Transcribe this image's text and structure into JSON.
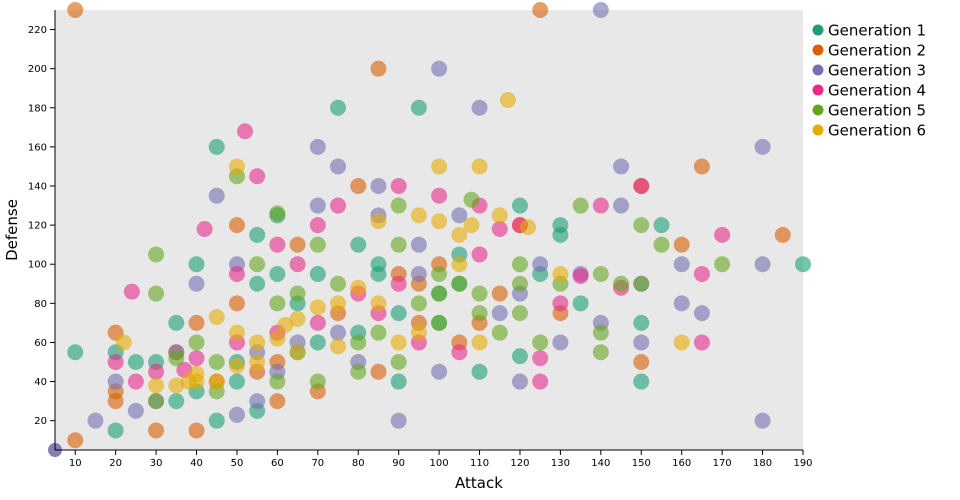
{
  "chart_data": {
    "type": "scatter",
    "xlabel": "Attack",
    "ylabel": "Defense",
    "xlim": [
      5,
      190
    ],
    "ylim": [
      5,
      230
    ],
    "grid": false,
    "legend_position": "right",
    "background": "#e8e8e8",
    "x_ticks": [
      "10",
      "20",
      "30",
      "40",
      "50",
      "60",
      "70",
      "80",
      "90",
      "100",
      "110",
      "120",
      "130",
      "140",
      "150",
      "160",
      "170",
      "180",
      "190"
    ],
    "y_ticks": [
      "20",
      "40",
      "60",
      "80",
      "100",
      "120",
      "140",
      "160",
      "180",
      "200",
      "220"
    ],
    "series": [
      {
        "name": "Generation 1",
        "color": "#1b9e77",
        "points": [
          [
            10,
            55
          ],
          [
            20,
            15
          ],
          [
            20,
            55
          ],
          [
            25,
            50
          ],
          [
            35,
            30
          ],
          [
            35,
            70
          ],
          [
            40,
            100
          ],
          [
            45,
            20
          ],
          [
            45,
            160
          ],
          [
            50,
            40
          ],
          [
            55,
            25
          ],
          [
            55,
            115
          ],
          [
            55,
            90
          ],
          [
            60,
            95
          ],
          [
            60,
            125
          ],
          [
            65,
            55
          ],
          [
            70,
            95
          ],
          [
            75,
            180
          ],
          [
            80,
            110
          ],
          [
            80,
            65
          ],
          [
            85,
            100
          ],
          [
            90,
            40
          ],
          [
            95,
            180
          ],
          [
            100,
            70
          ],
          [
            105,
            105
          ],
          [
            110,
            45
          ],
          [
            120,
            130
          ],
          [
            120,
            53
          ],
          [
            130,
            115
          ],
          [
            130,
            120
          ],
          [
            135,
            80
          ],
          [
            150,
            40
          ],
          [
            150,
            70
          ],
          [
            155,
            120
          ],
          [
            190,
            100
          ],
          [
            65,
            80
          ],
          [
            85,
            95
          ],
          [
            105,
            90
          ],
          [
            50,
            50
          ],
          [
            40,
            35
          ],
          [
            30,
            50
          ],
          [
            70,
            60
          ],
          [
            90,
            75
          ],
          [
            100,
            85
          ],
          [
            125,
            95
          ]
        ]
      },
      {
        "name": "Generation 2",
        "color": "#d95f02",
        "points": [
          [
            10,
            230
          ],
          [
            10,
            10
          ],
          [
            20,
            65
          ],
          [
            20,
            35
          ],
          [
            20,
            30
          ],
          [
            30,
            15
          ],
          [
            40,
            15
          ],
          [
            50,
            120
          ],
          [
            60,
            30
          ],
          [
            65,
            110
          ],
          [
            70,
            35
          ],
          [
            80,
            140
          ],
          [
            85,
            200
          ],
          [
            90,
            95
          ],
          [
            95,
            90
          ],
          [
            100,
            100
          ],
          [
            110,
            70
          ],
          [
            115,
            85
          ],
          [
            120,
            120
          ],
          [
            125,
            230
          ],
          [
            130,
            75
          ],
          [
            150,
            140
          ],
          [
            150,
            50
          ],
          [
            160,
            110
          ],
          [
            165,
            150
          ],
          [
            185,
            115
          ],
          [
            75,
            75
          ],
          [
            85,
            45
          ],
          [
            55,
            45
          ],
          [
            45,
            40
          ],
          [
            35,
            55
          ],
          [
            95,
            70
          ],
          [
            105,
            60
          ],
          [
            60,
            50
          ],
          [
            40,
            70
          ],
          [
            50,
            80
          ]
        ]
      },
      {
        "name": "Generation 3",
        "color": "#7570b3",
        "points": [
          [
            15,
            20
          ],
          [
            20,
            40
          ],
          [
            25,
            25
          ],
          [
            30,
            30
          ],
          [
            35,
            55
          ],
          [
            40,
            90
          ],
          [
            45,
            135
          ],
          [
            50,
            100
          ],
          [
            50,
            23
          ],
          [
            55,
            30
          ],
          [
            60,
            45
          ],
          [
            65,
            60
          ],
          [
            70,
            160
          ],
          [
            70,
            130
          ],
          [
            75,
            150
          ],
          [
            80,
            50
          ],
          [
            85,
            140
          ],
          [
            85,
            125
          ],
          [
            90,
            20
          ],
          [
            95,
            95
          ],
          [
            100,
            200
          ],
          [
            100,
            45
          ],
          [
            105,
            125
          ],
          [
            110,
            180
          ],
          [
            120,
            40
          ],
          [
            120,
            85
          ],
          [
            125,
            100
          ],
          [
            130,
            60
          ],
          [
            140,
            230
          ],
          [
            140,
            70
          ],
          [
            145,
            150
          ],
          [
            150,
            90
          ],
          [
            150,
            60
          ],
          [
            160,
            100
          ],
          [
            160,
            80
          ],
          [
            165,
            75
          ],
          [
            180,
            160
          ],
          [
            180,
            100
          ],
          [
            180,
            20
          ],
          [
            145,
            130
          ],
          [
            135,
            95
          ],
          [
            115,
            75
          ],
          [
            95,
            110
          ],
          [
            75,
            65
          ],
          [
            55,
            55
          ]
        ]
      },
      {
        "name": "Generation 4",
        "color": "#e7298a",
        "points": [
          [
            20,
            50
          ],
          [
            24,
            86
          ],
          [
            25,
            40
          ],
          [
            30,
            45
          ],
          [
            37,
            46
          ],
          [
            42,
            118
          ],
          [
            50,
            95
          ],
          [
            52,
            168
          ],
          [
            55,
            145
          ],
          [
            60,
            110
          ],
          [
            65,
            100
          ],
          [
            70,
            120
          ],
          [
            75,
            130
          ],
          [
            80,
            85
          ],
          [
            85,
            75
          ],
          [
            90,
            140
          ],
          [
            95,
            60
          ],
          [
            100,
            135
          ],
          [
            105,
            55
          ],
          [
            110,
            130
          ],
          [
            115,
            118
          ],
          [
            120,
            120
          ],
          [
            125,
            52
          ],
          [
            125,
            40
          ],
          [
            130,
            80
          ],
          [
            135,
            94
          ],
          [
            140,
            130
          ],
          [
            145,
            88
          ],
          [
            150,
            140
          ],
          [
            165,
            95
          ],
          [
            165,
            60
          ],
          [
            170,
            115
          ],
          [
            110,
            105
          ],
          [
            90,
            90
          ],
          [
            70,
            70
          ],
          [
            60,
            65
          ],
          [
            50,
            60
          ],
          [
            40,
            52
          ]
        ]
      },
      {
        "name": "Generation 5",
        "color": "#66a61e",
        "points": [
          [
            30,
            105
          ],
          [
            30,
            85
          ],
          [
            35,
            52
          ],
          [
            40,
            60
          ],
          [
            45,
            50
          ],
          [
            50,
            145
          ],
          [
            55,
            100
          ],
          [
            60,
            126
          ],
          [
            60,
            80
          ],
          [
            65,
            85
          ],
          [
            70,
            40
          ],
          [
            75,
            90
          ],
          [
            80,
            60
          ],
          [
            85,
            65
          ],
          [
            90,
            110
          ],
          [
            90,
            130
          ],
          [
            95,
            80
          ],
          [
            100,
            95
          ],
          [
            100,
            85
          ],
          [
            105,
            90
          ],
          [
            108,
            133
          ],
          [
            110,
            75
          ],
          [
            115,
            65
          ],
          [
            120,
            100
          ],
          [
            120,
            90
          ],
          [
            125,
            60
          ],
          [
            130,
            90
          ],
          [
            135,
            130
          ],
          [
            140,
            95
          ],
          [
            140,
            65
          ],
          [
            145,
            90
          ],
          [
            150,
            120
          ],
          [
            150,
            90
          ],
          [
            155,
            110
          ],
          [
            170,
            100
          ],
          [
            140,
            55
          ],
          [
            120,
            75
          ],
          [
            100,
            70
          ],
          [
            80,
            45
          ],
          [
            60,
            40
          ],
          [
            45,
            35
          ],
          [
            30,
            30
          ],
          [
            70,
            110
          ],
          [
            90,
            50
          ],
          [
            110,
            85
          ]
        ]
      },
      {
        "name": "Generation 6",
        "color": "#e6ab02",
        "points": [
          [
            22,
            60
          ],
          [
            30,
            38
          ],
          [
            35,
            38
          ],
          [
            38,
            40
          ],
          [
            40,
            44
          ],
          [
            45,
            73
          ],
          [
            50,
            150
          ],
          [
            50,
            48
          ],
          [
            55,
            60
          ],
          [
            60,
            62
          ],
          [
            62,
            69
          ],
          [
            65,
            72
          ],
          [
            70,
            78
          ],
          [
            75,
            80
          ],
          [
            80,
            88
          ],
          [
            85,
            122
          ],
          [
            90,
            60
          ],
          [
            95,
            125
          ],
          [
            100,
            150
          ],
          [
            100,
            122
          ],
          [
            105,
            115
          ],
          [
            108,
            120
          ],
          [
            110,
            150
          ],
          [
            110,
            60
          ],
          [
            115,
            125
          ],
          [
            117,
            184
          ],
          [
            122,
            119
          ],
          [
            130,
            95
          ],
          [
            160,
            60
          ],
          [
            85,
            80
          ],
          [
            75,
            58
          ],
          [
            65,
            55
          ],
          [
            55,
            50
          ],
          [
            45,
            40
          ],
          [
            40,
            40
          ],
          [
            50,
            65
          ],
          [
            95,
            65
          ],
          [
            105,
            100
          ]
        ]
      }
    ]
  }
}
